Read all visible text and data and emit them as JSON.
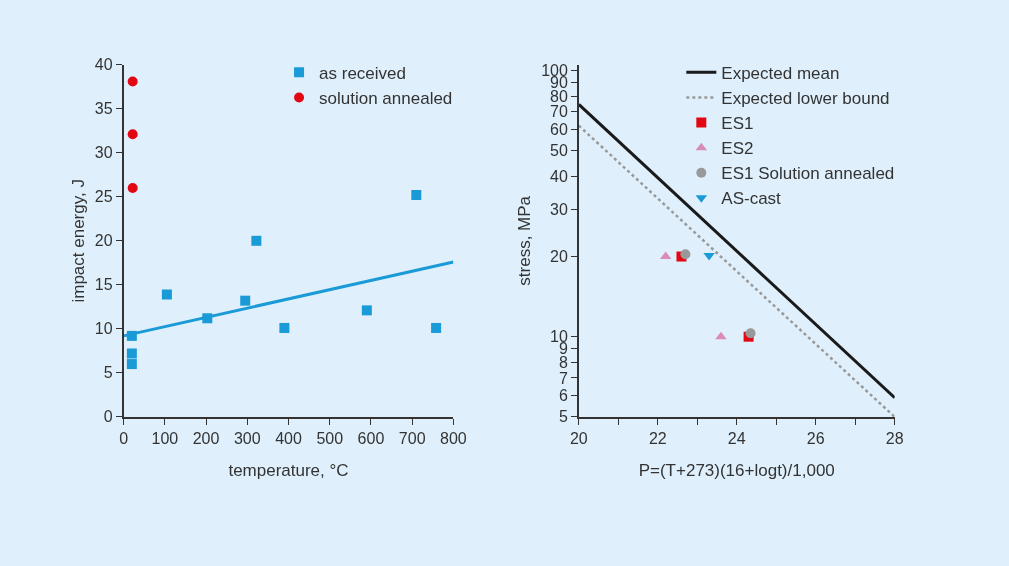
{
  "chart_data": [
    {
      "type": "scatter",
      "xlabel": "temperature, °C",
      "ylabel": "impact energy, J",
      "xlim": [
        0,
        800
      ],
      "ylim": [
        0,
        40
      ],
      "xticks": [
        0,
        100,
        200,
        300,
        400,
        500,
        600,
        700,
        800
      ],
      "yticks": [
        0,
        5,
        10,
        15,
        20,
        25,
        30,
        35,
        40
      ],
      "grid": false,
      "legend": "top right",
      "series": [
        {
          "name": "as received",
          "marker": "square",
          "color": "#1a9ad6",
          "x": [
            20,
            20,
            20,
            105,
            203,
            295,
            322,
            390,
            590,
            710,
            758
          ],
          "values": [
            9.2,
            7.2,
            6.0,
            13.9,
            11.2,
            13.2,
            20.0,
            10.1,
            12.1,
            25.2,
            10.1
          ]
        },
        {
          "name": "solution annealed",
          "marker": "circle",
          "color": "#e30613",
          "x": [
            22,
            22,
            22
          ],
          "values": [
            38.1,
            32.1,
            26.0
          ]
        },
        {
          "type": "line",
          "marker": "none",
          "line_style": "solid",
          "color": "#1a9ad6",
          "x": [
            0,
            800
          ],
          "values": [
            9.2,
            17.6
          ]
        }
      ]
    },
    {
      "type": "scatter",
      "xlabel": "P=(T+273)(16+logt)/1,000",
      "ylabel": "stress, MPa",
      "log": "y",
      "xlim": [
        20,
        28
      ],
      "ylim": [
        5,
        105
      ],
      "grid": false,
      "legend": "top right",
      "xticks": [
        20,
        {
          "value": 21,
          "label": null
        },
        22,
        {
          "value": 23,
          "label": null
        },
        24,
        {
          "value": 25,
          "label": null
        },
        26,
        {
          "value": 27,
          "label": null
        },
        28
      ],
      "yticks": [
        5,
        6,
        7,
        8,
        9,
        10,
        20,
        30,
        40,
        50,
        60,
        70,
        80,
        90,
        100
      ],
      "series": [
        {
          "name": "Expected mean",
          "type": "line",
          "marker": "none",
          "line_style": "solid",
          "color": "#1a1a1a",
          "x": [
            20,
            28
          ],
          "values": [
            74.5,
            5.9
          ]
        },
        {
          "name": "Expected lower bound",
          "type": "line",
          "marker": "none",
          "line_style": "dotted",
          "color": "#999999",
          "x": [
            20,
            28
          ],
          "values": [
            62,
            5
          ]
        },
        {
          "name": "ES1",
          "marker": "square",
          "color": "#e30613",
          "x": [
            22.6,
            24.3
          ],
          "values": [
            20,
            10
          ]
        },
        {
          "name": "ES2",
          "marker": "triangle",
          "color": "#d98cb8",
          "x": [
            22.2,
            23.6
          ],
          "values": [
            20,
            10
          ]
        },
        {
          "name": "ES1 Solution annealed",
          "marker": "circle",
          "color": "#999999",
          "x": [
            22.7,
            24.35
          ],
          "values": [
            20.4,
            10.3
          ]
        },
        {
          "name": "AS-cast",
          "marker": "triangle-down",
          "color": "#1a9ad6",
          "x": [
            23.3
          ],
          "values": [
            20.2
          ]
        }
      ]
    }
  ]
}
